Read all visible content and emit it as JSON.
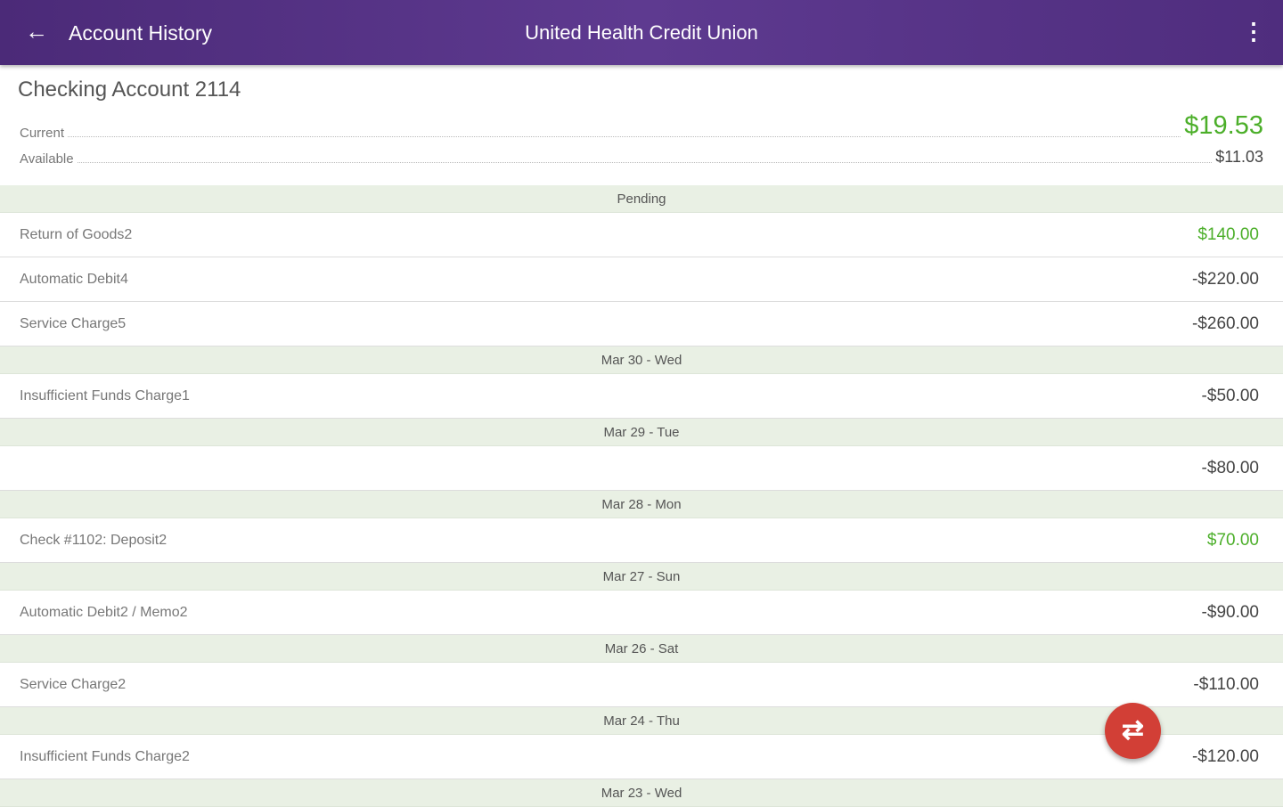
{
  "header": {
    "back_icon": "arrow-left-icon",
    "title": "Account History",
    "brand": "United Health Credit Union",
    "menu_icon": "more-vert-icon"
  },
  "account": {
    "name": "Checking Account 2114",
    "current_label": "Current",
    "current": "$19.53",
    "available_label": "Available",
    "available": "$11.03"
  },
  "colors": {
    "primary": "#5a3789",
    "positive": "#4caf2a",
    "fab": "#d23f36"
  },
  "sections": [
    {
      "label": "Pending",
      "items": [
        {
          "desc": "Return of Goods2",
          "amount": "$140.00",
          "positive": true
        },
        {
          "desc": "Automatic Debit4",
          "amount": "-$220.00"
        },
        {
          "desc": "Service Charge5",
          "amount": "-$260.00"
        }
      ]
    },
    {
      "label": "Mar 30 - Wed",
      "items": [
        {
          "desc": "Insufficient Funds Charge1",
          "amount": "-$50.00"
        }
      ]
    },
    {
      "label": "Mar 29 - Tue",
      "items": [
        {
          "desc": "",
          "amount": "-$80.00"
        }
      ]
    },
    {
      "label": "Mar 28 - Mon",
      "items": [
        {
          "desc": "Check #1102: Deposit2",
          "amount": "$70.00",
          "positive": true
        }
      ]
    },
    {
      "label": "Mar 27 - Sun",
      "items": [
        {
          "desc": "Automatic Debit2 / Memo2",
          "amount": "-$90.00"
        }
      ]
    },
    {
      "label": "Mar 26 - Sat",
      "items": [
        {
          "desc": "Service Charge2",
          "amount": "-$110.00"
        }
      ]
    },
    {
      "label": "Mar 24 - Thu",
      "items": [
        {
          "desc": "Insufficient Funds Charge2",
          "amount": "-$120.00"
        }
      ]
    },
    {
      "label": "Mar 23 - Wed",
      "items": []
    }
  ],
  "fab": {
    "icon": "swap-horiz-icon"
  }
}
